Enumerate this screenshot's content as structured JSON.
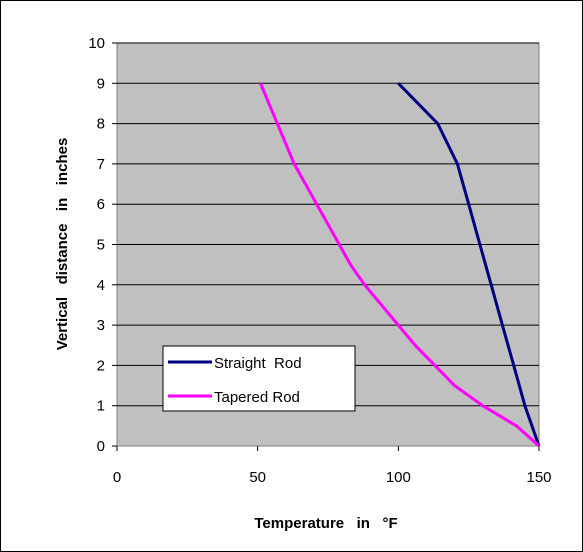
{
  "chart_data": {
    "type": "line",
    "xlabel": "Temperature   in   °F",
    "ylabel": "Vertical   distance   in   inches",
    "xlim": [
      0,
      150
    ],
    "ylim": [
      0,
      10
    ],
    "x_ticks": [
      "0",
      "50",
      "100",
      "150"
    ],
    "y_ticks": [
      "0",
      "1",
      "2",
      "3",
      "4",
      "5",
      "6",
      "7",
      "8",
      "9",
      "10"
    ],
    "grid": "horizontal",
    "plot_background": "#c0c0c0",
    "legend_position": "bottom-left",
    "series": [
      {
        "name": "Straight  Rod",
        "color": "#000080",
        "points": [
          [
            150,
            0
          ],
          [
            145,
            1
          ],
          [
            141,
            2
          ],
          [
            137,
            3
          ],
          [
            133,
            4
          ],
          [
            129,
            5
          ],
          [
            125,
            6
          ],
          [
            121,
            7
          ],
          [
            114,
            8
          ],
          [
            100,
            9
          ]
        ]
      },
      {
        "name": "Tapered Rod",
        "color": "#ff00ff",
        "points": [
          [
            150,
            0
          ],
          [
            142,
            0.5
          ],
          [
            130,
            1
          ],
          [
            120,
            1.5
          ],
          [
            113,
            2
          ],
          [
            106,
            2.5
          ],
          [
            100,
            3
          ],
          [
            94,
            3.5
          ],
          [
            88,
            4
          ],
          [
            83,
            4.5
          ],
          [
            79,
            5
          ],
          [
            75,
            5.5
          ],
          [
            71,
            6
          ],
          [
            67,
            6.5
          ],
          [
            63,
            7
          ],
          [
            60,
            7.5
          ],
          [
            57,
            8
          ],
          [
            54,
            8.5
          ],
          [
            51,
            9
          ]
        ]
      }
    ]
  }
}
